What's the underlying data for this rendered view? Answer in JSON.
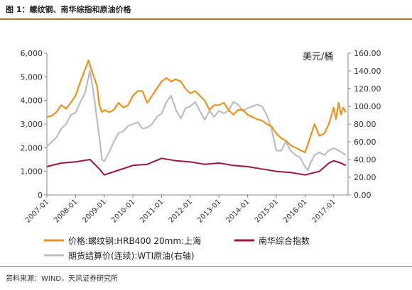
{
  "title": "图 1：螺纹钢、南华综指和原油价格",
  "source": "资料来源：WIND，天风证券研究所",
  "chart_data": {
    "type": "line",
    "right_unit_label": "美元/桶",
    "left_axis": {
      "min": 0,
      "max": 6000,
      "ticks": [
        "0",
        "1,000",
        "2,000",
        "3,000",
        "4,000",
        "5,000",
        "6,000"
      ]
    },
    "right_axis": {
      "min": 0,
      "max": 160,
      "ticks": [
        "0.00",
        "20.00",
        "40.00",
        "60.00",
        "80.00",
        "100.00",
        "120.00",
        "140.00",
        "160.00"
      ]
    },
    "x_range": [
      2007.0,
      2017.5
    ],
    "x_ticks": [
      "2007-01",
      "2008-01",
      "2009-01",
      "2010-01",
      "2011-01",
      "2012-01",
      "2013-01",
      "2014-01",
      "2015-01",
      "2016-01",
      "2017-01"
    ],
    "grid": false,
    "legend_position": "bottom",
    "series": [
      {
        "name": "价格:螺纹钢:HRB400 20mm:上海",
        "axis": "left",
        "color": "#f0901e",
        "points": [
          [
            2007.0,
            3300
          ],
          [
            2007.17,
            3350
          ],
          [
            2007.33,
            3500
          ],
          [
            2007.5,
            3800
          ],
          [
            2007.67,
            3650
          ],
          [
            2007.83,
            3900
          ],
          [
            2008.0,
            4200
          ],
          [
            2008.17,
            4800
          ],
          [
            2008.33,
            5300
          ],
          [
            2008.45,
            5700
          ],
          [
            2008.58,
            5200
          ],
          [
            2008.75,
            4600
          ],
          [
            2008.83,
            3800
          ],
          [
            2008.92,
            3500
          ],
          [
            2009.0,
            3600
          ],
          [
            2009.17,
            3500
          ],
          [
            2009.33,
            3600
          ],
          [
            2009.5,
            3900
          ],
          [
            2009.67,
            3700
          ],
          [
            2009.83,
            3800
          ],
          [
            2010.0,
            4200
          ],
          [
            2010.17,
            4400
          ],
          [
            2010.33,
            4400
          ],
          [
            2010.5,
            3900
          ],
          [
            2010.67,
            4200
          ],
          [
            2010.83,
            4500
          ],
          [
            2011.0,
            4800
          ],
          [
            2011.17,
            4950
          ],
          [
            2011.33,
            4800
          ],
          [
            2011.5,
            4900
          ],
          [
            2011.67,
            4800
          ],
          [
            2011.83,
            4500
          ],
          [
            2012.0,
            4300
          ],
          [
            2012.17,
            4400
          ],
          [
            2012.33,
            4200
          ],
          [
            2012.5,
            4000
          ],
          [
            2012.67,
            3600
          ],
          [
            2012.83,
            3800
          ],
          [
            2013.0,
            3800
          ],
          [
            2013.17,
            3900
          ],
          [
            2013.33,
            3600
          ],
          [
            2013.5,
            3400
          ],
          [
            2013.67,
            3600
          ],
          [
            2013.83,
            3600
          ],
          [
            2014.0,
            3400
          ],
          [
            2014.17,
            3300
          ],
          [
            2014.33,
            3200
          ],
          [
            2014.5,
            3150
          ],
          [
            2014.67,
            3000
          ],
          [
            2014.83,
            2900
          ],
          [
            2015.0,
            2600
          ],
          [
            2015.17,
            2400
          ],
          [
            2015.33,
            2300
          ],
          [
            2015.5,
            2100
          ],
          [
            2015.67,
            2000
          ],
          [
            2015.83,
            1900
          ],
          [
            2016.0,
            1800
          ],
          [
            2016.17,
            2400
          ],
          [
            2016.33,
            3000
          ],
          [
            2016.5,
            2500
          ],
          [
            2016.67,
            2600
          ],
          [
            2016.83,
            3000
          ],
          [
            2017.0,
            3700
          ],
          [
            2017.08,
            3200
          ],
          [
            2017.17,
            3900
          ],
          [
            2017.25,
            3400
          ],
          [
            2017.33,
            3700
          ],
          [
            2017.42,
            3500
          ]
        ]
      },
      {
        "name": "南华综合指数",
        "axis": "left",
        "color": "#a3123a",
        "points": [
          [
            2007.0,
            1200
          ],
          [
            2007.5,
            1350
          ],
          [
            2008.0,
            1400
          ],
          [
            2008.5,
            1500
          ],
          [
            2008.83,
            1100
          ],
          [
            2009.0,
            850
          ],
          [
            2009.5,
            1050
          ],
          [
            2010.0,
            1250
          ],
          [
            2010.5,
            1300
          ],
          [
            2011.0,
            1550
          ],
          [
            2011.5,
            1450
          ],
          [
            2012.0,
            1400
          ],
          [
            2012.5,
            1300
          ],
          [
            2013.0,
            1350
          ],
          [
            2013.5,
            1250
          ],
          [
            2014.0,
            1200
          ],
          [
            2014.5,
            1100
          ],
          [
            2015.0,
            1000
          ],
          [
            2015.5,
            950
          ],
          [
            2016.0,
            850
          ],
          [
            2016.5,
            1000
          ],
          [
            2016.83,
            1350
          ],
          [
            2017.0,
            1450
          ],
          [
            2017.25,
            1350
          ],
          [
            2017.42,
            1250
          ]
        ]
      },
      {
        "name": "期货结算价(连续):WTI原油(右轴)",
        "axis": "right",
        "color": "#bdbdbd",
        "points": [
          [
            2007.0,
            55
          ],
          [
            2007.17,
            60
          ],
          [
            2007.33,
            65
          ],
          [
            2007.5,
            75
          ],
          [
            2007.67,
            80
          ],
          [
            2007.83,
            90
          ],
          [
            2008.0,
            93
          ],
          [
            2008.17,
            105
          ],
          [
            2008.33,
            115
          ],
          [
            2008.5,
            140
          ],
          [
            2008.58,
            125
          ],
          [
            2008.67,
            105
          ],
          [
            2008.83,
            65
          ],
          [
            2008.92,
            40
          ],
          [
            2009.0,
            38
          ],
          [
            2009.17,
            48
          ],
          [
            2009.33,
            60
          ],
          [
            2009.5,
            70
          ],
          [
            2009.67,
            72
          ],
          [
            2009.83,
            78
          ],
          [
            2010.0,
            80
          ],
          [
            2010.17,
            82
          ],
          [
            2010.33,
            75
          ],
          [
            2010.5,
            76
          ],
          [
            2010.67,
            80
          ],
          [
            2010.83,
            88
          ],
          [
            2011.0,
            92
          ],
          [
            2011.17,
            105
          ],
          [
            2011.33,
            112
          ],
          [
            2011.5,
            96
          ],
          [
            2011.67,
            86
          ],
          [
            2011.83,
            98
          ],
          [
            2012.0,
            100
          ],
          [
            2012.17,
            105
          ],
          [
            2012.33,
            95
          ],
          [
            2012.5,
            85
          ],
          [
            2012.67,
            95
          ],
          [
            2012.83,
            88
          ],
          [
            2013.0,
            95
          ],
          [
            2013.17,
            92
          ],
          [
            2013.33,
            95
          ],
          [
            2013.5,
            105
          ],
          [
            2013.67,
            102
          ],
          [
            2013.83,
            95
          ],
          [
            2014.0,
            98
          ],
          [
            2014.17,
            100
          ],
          [
            2014.33,
            102
          ],
          [
            2014.5,
            100
          ],
          [
            2014.67,
            90
          ],
          [
            2014.83,
            75
          ],
          [
            2015.0,
            50
          ],
          [
            2015.17,
            50
          ],
          [
            2015.33,
            60
          ],
          [
            2015.5,
            50
          ],
          [
            2015.67,
            45
          ],
          [
            2015.83,
            42
          ],
          [
            2016.0,
            32
          ],
          [
            2016.1,
            28
          ],
          [
            2016.17,
            35
          ],
          [
            2016.33,
            45
          ],
          [
            2016.5,
            48
          ],
          [
            2016.67,
            45
          ],
          [
            2016.83,
            50
          ],
          [
            2017.0,
            53
          ],
          [
            2017.17,
            50
          ],
          [
            2017.33,
            47
          ],
          [
            2017.42,
            45
          ]
        ]
      }
    ]
  }
}
